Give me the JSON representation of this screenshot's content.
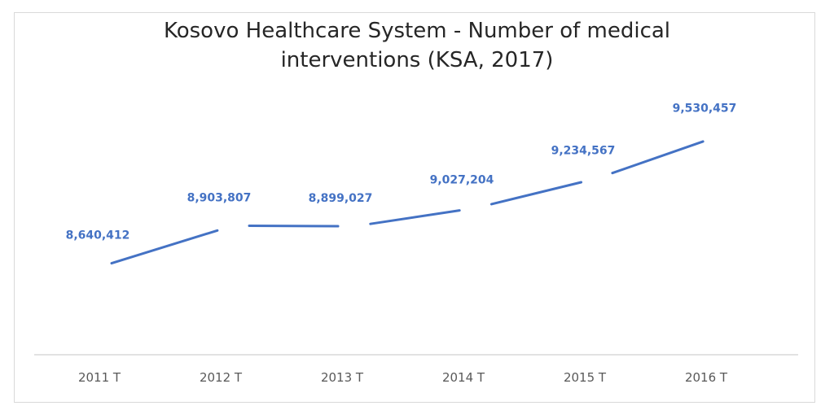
{
  "chart_data": {
    "type": "line",
    "title_lines": [
      "Kosovo Healthcare System - Number of medical",
      "interventions (KSA, 2017)"
    ],
    "categories": [
      "2011 T",
      "2012  T",
      "2013 T",
      "2014 T",
      "2015 T",
      "2016 T"
    ],
    "series": [
      {
        "values": [
          8640412,
          8903807,
          8899027,
          9027204,
          9234567,
          9530457
        ],
        "labels": [
          "8,640,412",
          "8,903,807",
          "8,899,027",
          "9,027,204",
          "9,234,567",
          "9,530,457"
        ]
      }
    ],
    "xlabel": "",
    "ylabel": "",
    "ylim": [
      8000000,
      9800000
    ],
    "grid": false,
    "legend": "none",
    "line_color": "#4472c4"
  }
}
